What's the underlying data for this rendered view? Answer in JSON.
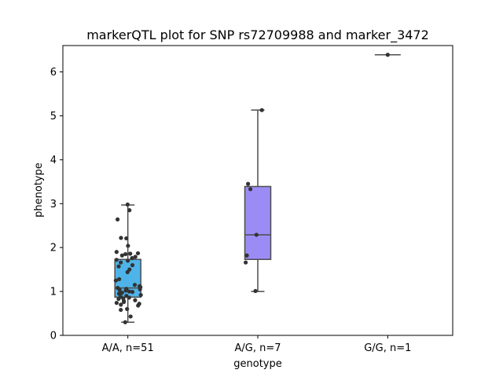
{
  "chart_data": {
    "type": "box",
    "title": "markerQTL plot for SNP rs72709988 and marker_3472",
    "xlabel": "genotype",
    "ylabel": "phenotype",
    "ylim": [
      0,
      6.6
    ],
    "yticks": [
      "0",
      "1",
      "2",
      "3",
      "4",
      "5",
      "6"
    ],
    "grid": false,
    "categories": [
      "A/A, n=51",
      "A/G, n=7",
      "G/G, n=1"
    ],
    "boxes": [
      {
        "category": "A/A, n=51",
        "color": "#4eb3e8",
        "whisker_low": 0.3,
        "q1": 0.87,
        "median": 1.08,
        "q3": 1.73,
        "whisker_high": 2.97
      },
      {
        "category": "A/G, n=7",
        "color": "#9b8cf5",
        "whisker_low": 1.0,
        "q1": 1.73,
        "median": 2.29,
        "q3": 3.39,
        "whisker_high": 5.13
      },
      {
        "category": "G/G, n=1",
        "color": "#f08ad8",
        "whisker_low": 6.39,
        "q1": 6.39,
        "median": 6.39,
        "q3": 6.39,
        "whisker_high": 6.39
      }
    ],
    "points": [
      {
        "category": "A/A, n=51",
        "values": [
          2.98,
          2.85,
          2.64,
          2.22,
          2.21,
          2.04,
          1.9,
          1.87,
          1.86,
          1.85,
          1.82,
          1.79,
          1.76,
          1.72,
          1.7,
          1.66,
          1.6,
          1.57,
          1.5,
          1.44,
          1.28,
          1.25,
          1.12,
          1.1,
          1.08,
          1.06,
          1.05,
          1.04,
          1.02,
          1.0,
          0.99,
          0.97,
          0.95,
          0.92,
          0.9,
          0.88,
          0.86,
          0.84,
          0.83,
          0.8,
          0.78,
          0.76,
          0.74,
          0.72,
          0.7,
          0.68,
          0.6,
          0.58,
          0.43,
          0.3,
          1.15
        ]
      },
      {
        "category": "A/G, n=7",
        "values": [
          5.13,
          3.45,
          3.33,
          2.29,
          1.82,
          1.66,
          1.01
        ]
      },
      {
        "category": "G/G, n=1",
        "values": [
          6.39
        ]
      }
    ]
  }
}
